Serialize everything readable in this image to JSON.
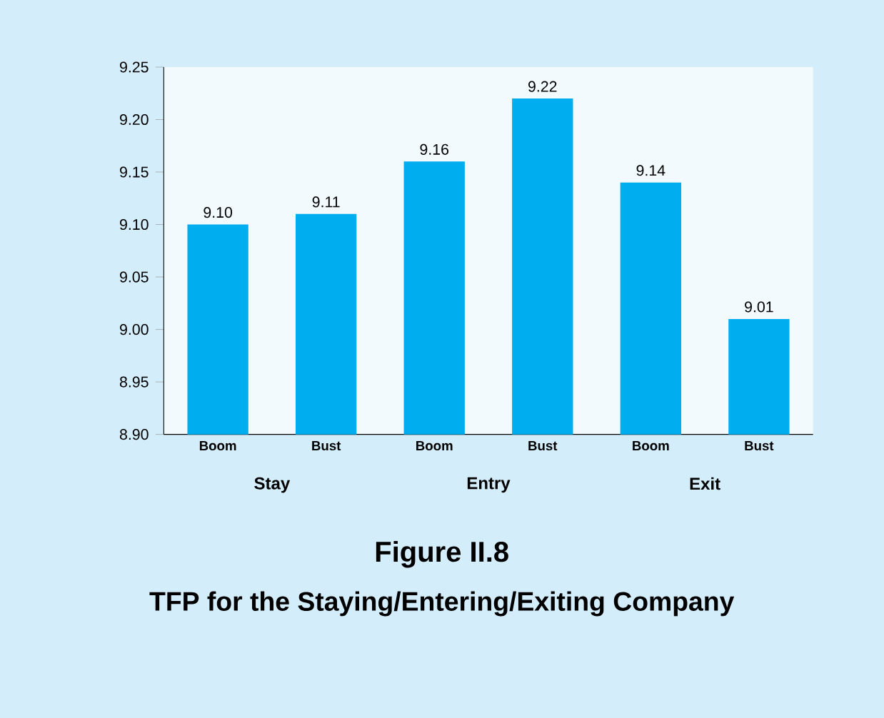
{
  "chart_data": {
    "type": "bar",
    "title": "Figure II.8",
    "subtitle": "TFP for the Staying/Entering/Exiting Company",
    "categories": [
      "Boom",
      "Bust",
      "Boom",
      "Bust",
      "Boom",
      "Bust"
    ],
    "values": [
      9.1,
      9.11,
      9.16,
      9.22,
      9.14,
      9.01
    ],
    "value_labels": [
      "9.10",
      "9.11",
      "9.16",
      "9.22",
      "9.14",
      "9.01"
    ],
    "color": "#00aeef",
    "annotations": [
      "Stay",
      "Entry",
      "Exit"
    ],
    "ylim": [
      8.9,
      9.25
    ],
    "yticks": [
      {
        "value": 8.9,
        "label": "8.90"
      },
      {
        "value": 8.95,
        "label": "8.95"
      },
      {
        "value": 9.0,
        "label": "9.00"
      },
      {
        "value": 9.05,
        "label": "9.05"
      },
      {
        "value": 9.1,
        "label": "9.10"
      },
      {
        "value": 9.15,
        "label": "9.15"
      },
      {
        "value": 9.2,
        "label": "9.20"
      },
      {
        "value": 9.25,
        "label": "9.25"
      }
    ],
    "orientation": "vertical"
  }
}
